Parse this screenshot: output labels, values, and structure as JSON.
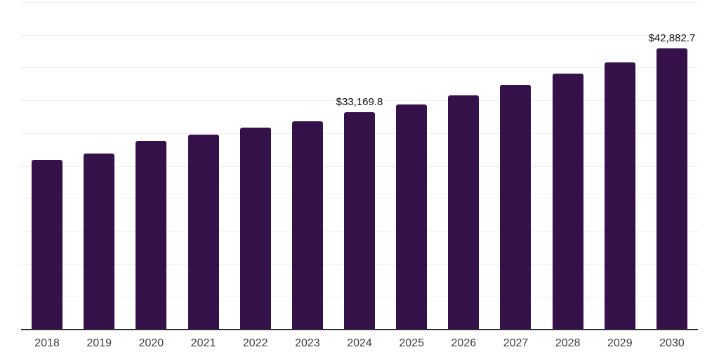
{
  "chart_data": {
    "type": "bar",
    "title": "",
    "xlabel": "",
    "ylabel": "",
    "categories": [
      "2018",
      "2019",
      "2020",
      "2021",
      "2022",
      "2023",
      "2024",
      "2025",
      "2026",
      "2027",
      "2028",
      "2029",
      "2030"
    ],
    "values": [
      25900,
      26850,
      28750,
      29800,
      30800,
      31850,
      33169.8,
      34400,
      35800,
      37400,
      39100,
      40800,
      42882.7
    ],
    "annotations": [
      {
        "category": "2024",
        "text": "$33,169.8"
      },
      {
        "category": "2030",
        "text": "$42,882.7"
      }
    ],
    "ylim": [
      0,
      50000
    ],
    "grid_step": 5000,
    "grid": true,
    "legend": "none",
    "bar_color": "#351149",
    "gridline_color": "#f0f0f0",
    "axis_line_color": "#2f2f2f",
    "value_label_color": "#111111",
    "tick_label_color": "#3d3d3d"
  }
}
